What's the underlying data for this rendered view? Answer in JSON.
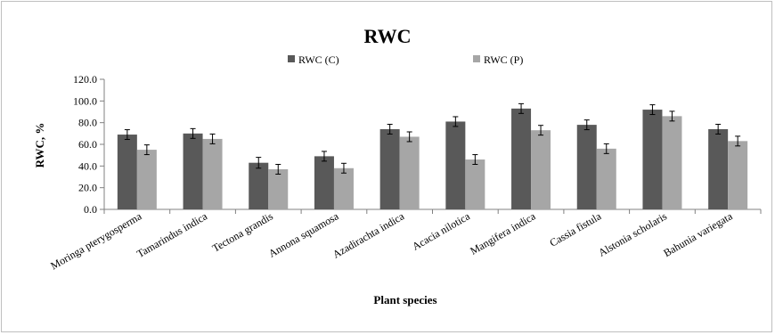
{
  "chart_data": {
    "type": "bar",
    "title": "RWC",
    "xlabel": "Plant species",
    "ylabel": "RWC, %",
    "ylim": [
      0,
      120
    ],
    "yticks": [
      "0.0",
      "20.0",
      "40.0",
      "60.0",
      "80.0",
      "100.0",
      "120.0"
    ],
    "grid": false,
    "legend_position": "top",
    "categories": [
      "Moringa pterygosperma",
      "Tamarindus indica",
      "Tectona grandis",
      "Annona squamosa",
      "Azadirachta indica",
      "Acacia nilotica",
      "Mangifera indica",
      "Cassia fistula",
      "Alstonia scholaris",
      "Bahunia variegata"
    ],
    "series": [
      {
        "name": "RWC (C)",
        "color": "#595959",
        "values": [
          69,
          70,
          43,
          49,
          74,
          81,
          93,
          78,
          92,
          74
        ],
        "errors": [
          4.5,
          4.5,
          5,
          4.5,
          4.5,
          4.5,
          4.5,
          4.5,
          4.5,
          4.5
        ]
      },
      {
        "name": "RWC (P)",
        "color": "#a6a6a6",
        "values": [
          55,
          65,
          37,
          38,
          67,
          46,
          73,
          56,
          86,
          63
        ],
        "errors": [
          4.5,
          4.5,
          4.5,
          4.5,
          4.5,
          4.5,
          4.5,
          4.5,
          4.5,
          4.5
        ]
      }
    ]
  }
}
